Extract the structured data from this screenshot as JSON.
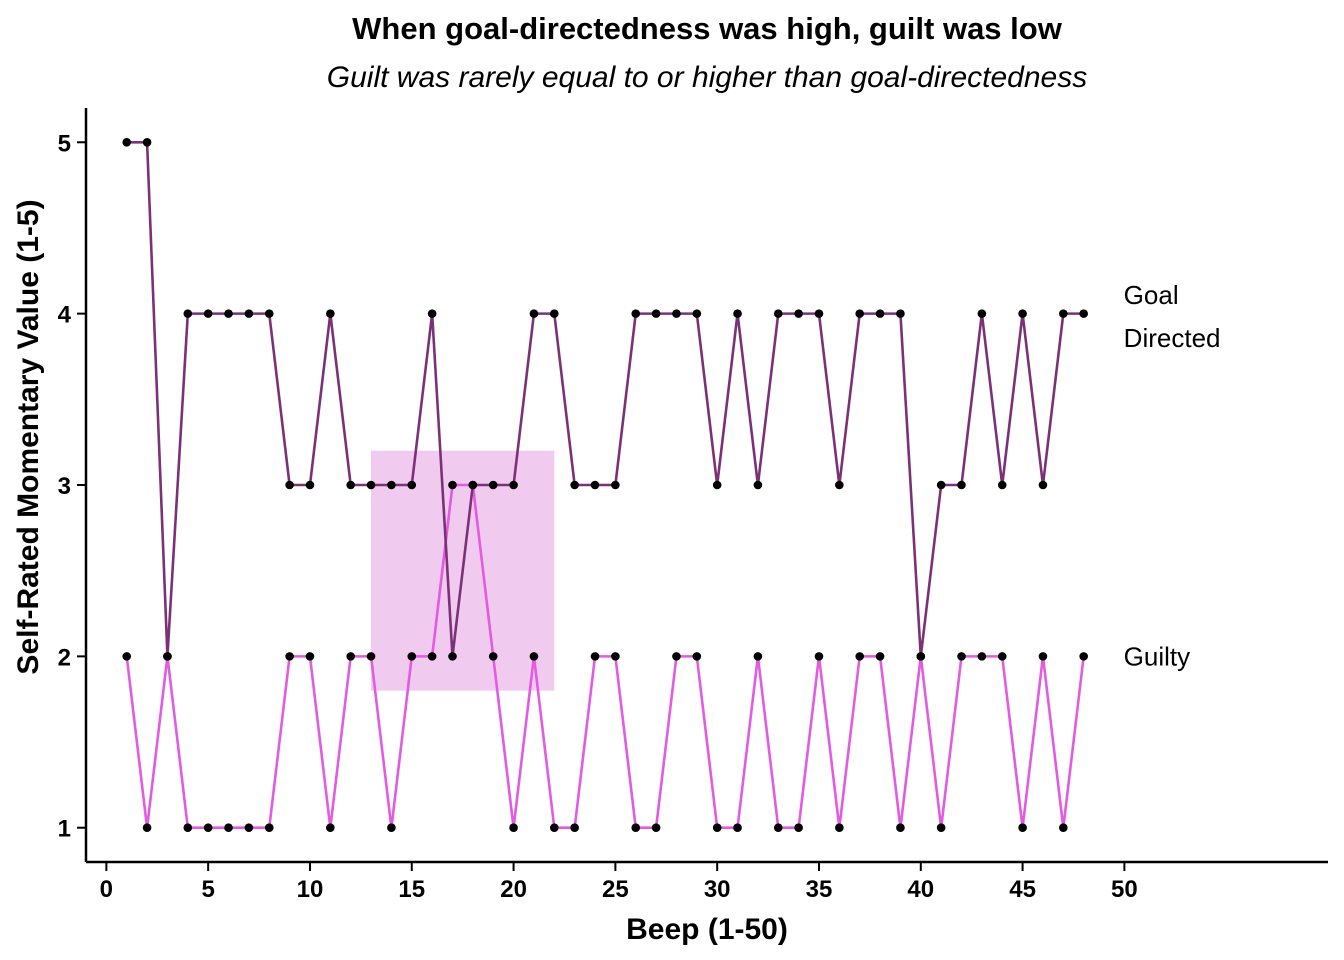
{
  "chart_data": {
    "type": "line",
    "title": "When goal-directedness was high, guilt was low",
    "subtitle": "Guilt was rarely equal to or higher than goal-directedness",
    "xlabel": "Beep (1-50)",
    "ylabel": "Self-Rated Momentary Value (1-5)",
    "xlim": [
      -1,
      60
    ],
    "ylim": [
      0.8,
      5.2
    ],
    "xticks": [
      0,
      5,
      10,
      15,
      20,
      25,
      30,
      35,
      40,
      45,
      50
    ],
    "yticks": [
      1,
      2,
      3,
      4,
      5
    ],
    "grid": false,
    "legend": "none",
    "x": [
      1,
      2,
      3,
      4,
      5,
      6,
      7,
      8,
      9,
      10,
      11,
      12,
      13,
      14,
      15,
      16,
      17,
      18,
      19,
      20,
      21,
      22,
      23,
      24,
      25,
      26,
      27,
      28,
      29,
      30,
      31,
      32,
      33,
      34,
      35,
      36,
      37,
      38,
      39,
      40,
      41,
      42,
      43,
      44,
      45,
      46,
      47,
      48
    ],
    "series": [
      {
        "label_lines": [
          "Goal",
          "Directed"
        ],
        "color": "#7b3178",
        "values": [
          5,
          5,
          2,
          4,
          4,
          4,
          4,
          4,
          3,
          3,
          4,
          3,
          3,
          3,
          3,
          4,
          2,
          3,
          3,
          3,
          4,
          4,
          3,
          3,
          3,
          4,
          4,
          4,
          4,
          3,
          4,
          3,
          4,
          4,
          4,
          3,
          4,
          4,
          4,
          2,
          3,
          3,
          4,
          3,
          4,
          3,
          4,
          4
        ]
      },
      {
        "label_lines": [
          "Guilty"
        ],
        "color": "#e25be0",
        "values": [
          2,
          1,
          2,
          1,
          1,
          1,
          1,
          1,
          2,
          2,
          1,
          2,
          2,
          1,
          2,
          2,
          3,
          3,
          2,
          1,
          2,
          1,
          1,
          2,
          2,
          1,
          1,
          2,
          2,
          1,
          1,
          2,
          1,
          1,
          2,
          1,
          2,
          2,
          1,
          2,
          1,
          2,
          2,
          2,
          1,
          2,
          1,
          2
        ]
      }
    ],
    "point_color": "#000000",
    "highlight_region": {
      "x": [
        13,
        22
      ],
      "y": [
        1.8,
        3.2
      ],
      "color": "#e8aee6"
    }
  }
}
